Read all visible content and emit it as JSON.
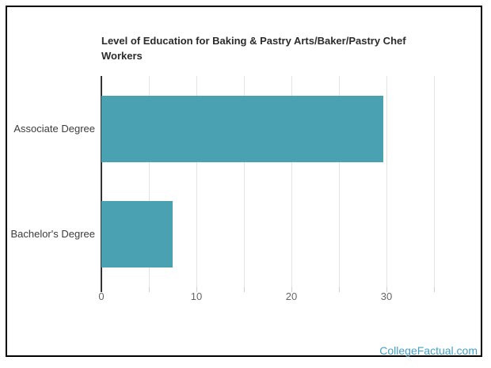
{
  "chart_data": {
    "type": "bar",
    "orientation": "horizontal",
    "title": "Level of Education for Baking & Pastry Arts/Baker/Pastry Chef Workers",
    "categories": [
      "Associate Degree",
      "Bachelor's Degree"
    ],
    "values": [
      29.6,
      7.5
    ],
    "xlabel": "",
    "ylabel": "",
    "xlim": [
      0,
      35.3
    ],
    "xticks": [
      0,
      10,
      20,
      30
    ],
    "grid_step": 5,
    "grid": true,
    "legend": false,
    "bar_color": "#4AA1B2"
  },
  "footer": {
    "link_text": "CollegeFactual.com",
    "link_color": "#45A1C1"
  },
  "colors": {
    "background": "#FFFFFF",
    "frame_border": "#000000",
    "title_text": "#2B2B2B",
    "category_label": "#3C3C3C",
    "tick_label": "#666666",
    "gridline": "#E3E3E3",
    "tick_mark": "#CFCFCF",
    "axis_line": "#333333"
  }
}
